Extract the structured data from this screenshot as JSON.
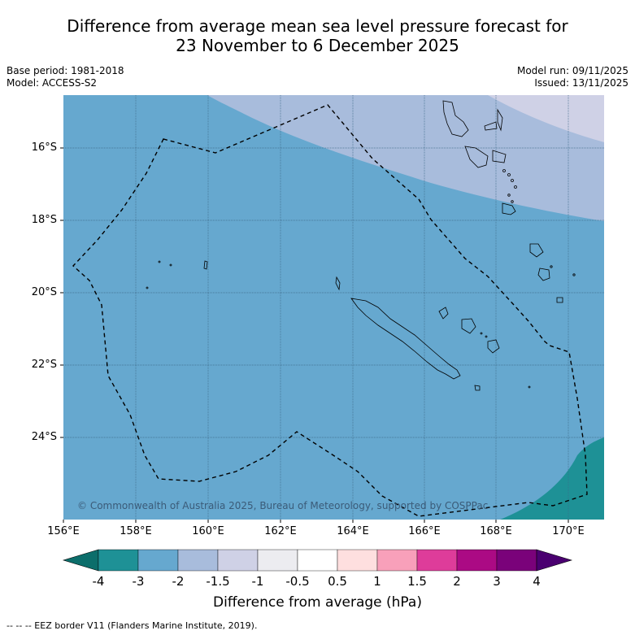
{
  "title": {
    "line1": "Difference from average mean sea level pressure forecast for",
    "line2": "23 November to 6 December 2025"
  },
  "meta": {
    "base_period": "Base period: 1981-2018",
    "model": "Model: ACCESS-S2",
    "model_run": "Model run: 09/11/2025",
    "issued": "Issued: 13/11/2025"
  },
  "map": {
    "copyright": "© Commonwealth of Australia 2025, Bureau of Meteorology, supported by COSPPac",
    "lat_labels": [
      "16°S",
      "18°S",
      "20°S",
      "22°S",
      "24°S"
    ],
    "lon_labels": [
      "156°E",
      "158°E",
      "160°E",
      "162°E",
      "164°E",
      "166°E",
      "168°E",
      "170°E"
    ],
    "colors": {
      "base": "#66a8cf",
      "light_band": "#a8bcdc",
      "lighter_band": "#cfd1e6",
      "teal_band": "#1e9196",
      "dark_teal": "#0c6e6b"
    }
  },
  "colorbar": {
    "ticks": [
      "-4",
      "-3",
      "-2",
      "-1.5",
      "-1",
      "-0.5",
      "0.5",
      "1",
      "1.5",
      "2",
      "3",
      "4"
    ],
    "colors": [
      "#1e9196",
      "#66a8cf",
      "#a8bcdc",
      "#cfd1e6",
      "#ececf0",
      "#ffffff",
      "#fedfdf",
      "#f8a0ba",
      "#de3c9a",
      "#ab0a84",
      "#7a027a"
    ],
    "under_color": "#0c6e6b",
    "over_color": "#4a0070",
    "label": "Difference from average (hPa)"
  },
  "legend": {
    "footnote": "--  --  -- EEZ border V11 (Flanders Marine Institute, 2019)."
  }
}
